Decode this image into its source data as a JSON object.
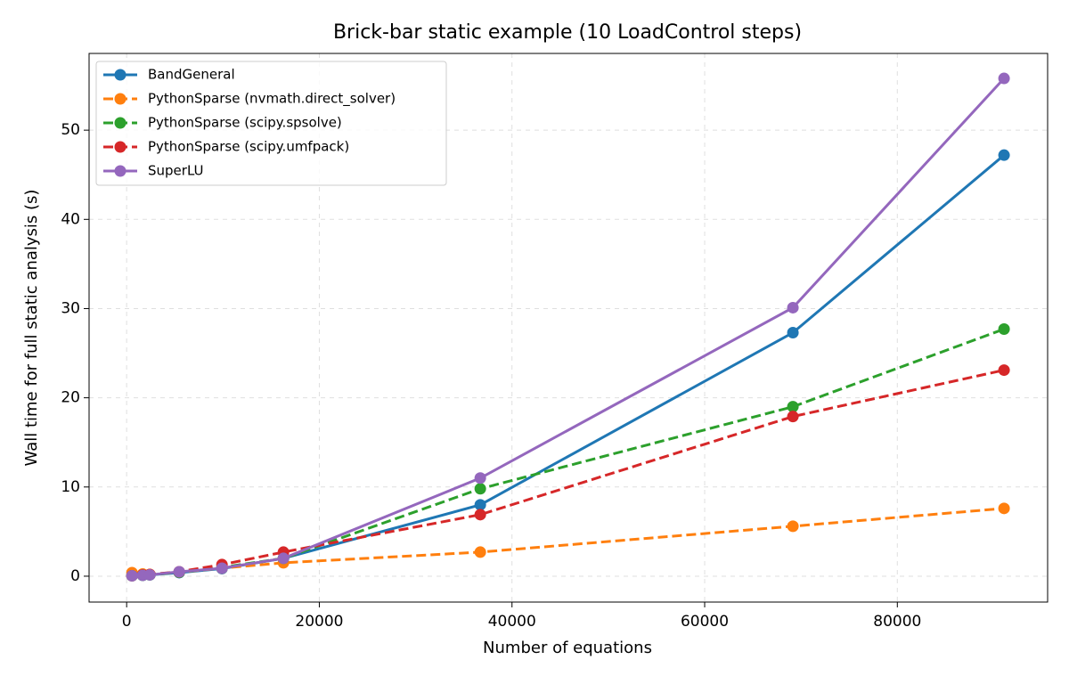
{
  "chart_data": {
    "type": "line",
    "title": "Brick-bar static example (10 LoadControl steps)",
    "x_label": "Number of equations",
    "y_label": "Wall time for full static analysis (s)",
    "x": [
      555,
      1664,
      2404,
      5455,
      9894,
      16274,
      36709,
      69160,
      91077
    ],
    "series": [
      {
        "name": "BandGeneral",
        "color": "#1f77b4",
        "linestyle": "solid",
        "values": [
          0.05,
          0.1,
          0.15,
          0.4,
          0.85,
          2.0,
          8.0,
          27.3,
          47.2
        ]
      },
      {
        "name": "PythonSparse (nvmath.direct_solver)",
        "color": "#ff7f0e",
        "linestyle": "dashed",
        "values": [
          0.4,
          0.25,
          0.2,
          0.45,
          0.9,
          1.5,
          2.7,
          5.6,
          7.6
        ]
      },
      {
        "name": "PythonSparse (scipy.spsolve)",
        "color": "#2ca02c",
        "linestyle": "dashed",
        "values": [
          0.05,
          0.1,
          0.15,
          0.45,
          1.0,
          2.0,
          9.8,
          19.0,
          27.7
        ]
      },
      {
        "name": "PythonSparse (scipy.umfpack)",
        "color": "#d62728",
        "linestyle": "dashed",
        "values": [
          0.05,
          0.15,
          0.2,
          0.5,
          1.3,
          2.7,
          6.9,
          17.9,
          23.1
        ]
      },
      {
        "name": "SuperLU",
        "color": "#9467bd",
        "linestyle": "solid",
        "values": [
          0.05,
          0.1,
          0.15,
          0.5,
          0.9,
          2.0,
          11.0,
          30.1,
          55.8
        ]
      }
    ],
    "xlim": [
      -3900,
      95600
    ],
    "xticks": [
      0,
      20000,
      40000,
      60000,
      80000
    ],
    "ylim": [
      -2.9,
      58.6
    ],
    "yticks": [
      0,
      10,
      20,
      30,
      40,
      50
    ],
    "grid": true,
    "legend_position": "upper-left"
  }
}
